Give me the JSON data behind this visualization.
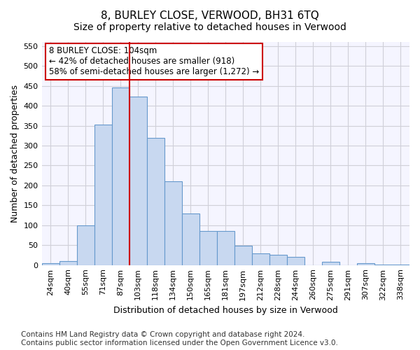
{
  "title": "8, BURLEY CLOSE, VERWOOD, BH31 6TQ",
  "subtitle": "Size of property relative to detached houses in Verwood",
  "xlabel": "Distribution of detached houses by size in Verwood",
  "ylabel": "Number of detached properties",
  "categories": [
    "24sqm",
    "40sqm",
    "55sqm",
    "71sqm",
    "87sqm",
    "103sqm",
    "118sqm",
    "134sqm",
    "150sqm",
    "165sqm",
    "181sqm",
    "197sqm",
    "212sqm",
    "228sqm",
    "244sqm",
    "260sqm",
    "275sqm",
    "291sqm",
    "307sqm",
    "322sqm",
    "338sqm"
  ],
  "values": [
    5,
    10,
    100,
    353,
    445,
    423,
    320,
    210,
    130,
    85,
    85,
    48,
    29,
    25,
    20,
    0,
    8,
    0,
    4,
    1,
    2
  ],
  "bar_color": "#c8d8f0",
  "bar_edge_color": "#6699cc",
  "vline_index": 5,
  "vline_color": "#cc0000",
  "annotation_text": "8 BURLEY CLOSE: 104sqm\n← 42% of detached houses are smaller (918)\n58% of semi-detached houses are larger (1,272) →",
  "annotation_box_color": "#ffffff",
  "annotation_edge_color": "#cc0000",
  "footer_line1": "Contains HM Land Registry data © Crown copyright and database right 2024.",
  "footer_line2": "Contains public sector information licensed under the Open Government Licence v3.0.",
  "ylim": [
    0,
    560
  ],
  "yticks": [
    0,
    50,
    100,
    150,
    200,
    250,
    300,
    350,
    400,
    450,
    500,
    550
  ],
  "background_color": "#ffffff",
  "plot_bg_color": "#f5f5ff",
  "grid_color": "#d0d0d8",
  "title_fontsize": 11,
  "subtitle_fontsize": 10,
  "axis_label_fontsize": 9,
  "tick_fontsize": 8,
  "footer_fontsize": 7.5
}
